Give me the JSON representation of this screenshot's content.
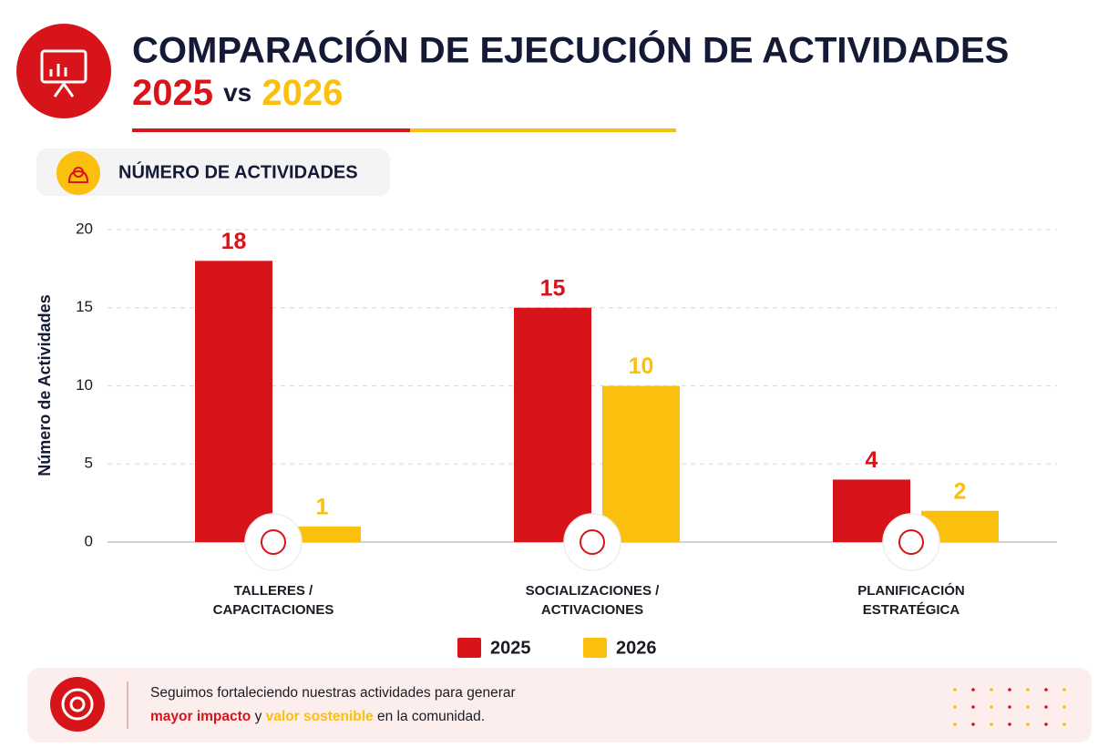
{
  "chart_data": {
    "type": "bar",
    "title": "COMPARACIÓN DE EJECUCIÓN DE ACTIVIDADES",
    "subtitle": {
      "first": "2025",
      "middle": "vs",
      "second": "2026"
    },
    "section_label": "NÚMERO DE ACTIVIDADES",
    "y_label": "Número de Actividades",
    "categories": [
      "TALLERES / CAPACITACIONES",
      "SOCIALIZACIONES / ACTIVACIONES",
      "PLANIFICACIÓN ESTRATÉGICA"
    ],
    "series": [
      {
        "name": "2025",
        "color": "#d7141a",
        "values": [
          18,
          15,
          4
        ]
      },
      {
        "name": "2026",
        "color": "#fbbf0e",
        "values": [
          1,
          10,
          2
        ]
      }
    ],
    "ylim": [
      0,
      20
    ],
    "yticks": [
      0,
      5,
      10,
      15,
      20
    ],
    "grid": true,
    "footer": {
      "line1": "Seguimos fortaleciendo nuestras actividades para generar",
      "highlight1": "mayor impacto",
      "joiner": "y",
      "highlight2": "valor sostenible",
      "ending": "en la comunidad."
    }
  }
}
